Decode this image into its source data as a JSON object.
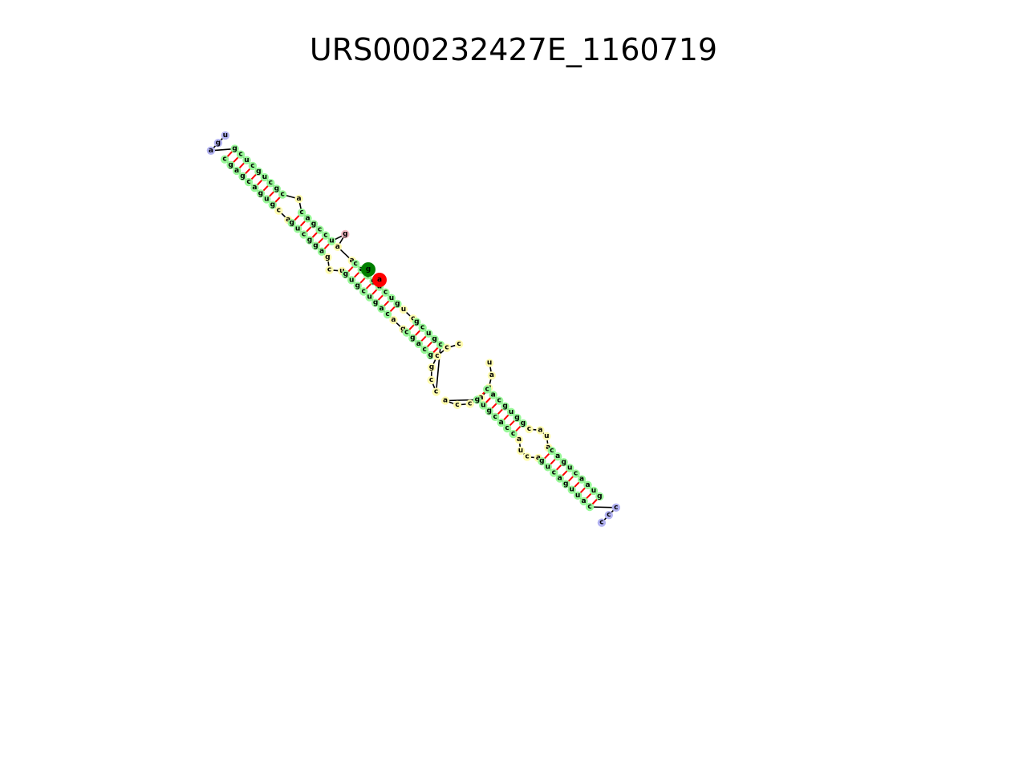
{
  "title": "URS000232427E_1160719",
  "colors": {
    "stem": "#98f898",
    "loop": "#fffcb0",
    "hairpin": "#b3b3f2",
    "unpaired_5prime": "#f2b8c2",
    "backbone": "#000000",
    "base_pair": "#ff0000",
    "start_marker": "#007f00",
    "end_marker": "#ff0000"
  },
  "diagram": {
    "type": "rna-secondary-structure",
    "segments": [
      {
        "id": "hairpin-top",
        "kind": "hairpin",
        "bases": [
          "u",
          "g",
          "a"
        ]
      },
      {
        "id": "stem-1",
        "kind": "stem",
        "strand_a": [
          "g",
          "c",
          "u",
          "c",
          "g",
          "u",
          "c",
          "g",
          "c"
        ],
        "strand_b": [
          "c",
          "g",
          "a",
          "g",
          "c",
          "a",
          "g",
          "u",
          "g"
        ]
      },
      {
        "id": "bulge-1",
        "kind": "loop",
        "bases": [
          "c",
          "a",
          "a"
        ]
      },
      {
        "id": "stem-2",
        "kind": "stem",
        "strand_a": [
          "c",
          "a",
          "g",
          "c",
          "c",
          "u"
        ],
        "strand_b": [
          "g",
          "u",
          "c",
          "g",
          "g",
          "a"
        ]
      },
      {
        "id": "loop-ends",
        "kind": "unpaired",
        "bases": [
          "g"
        ]
      },
      {
        "id": "loop-2",
        "kind": "loop",
        "bases": [
          "g",
          "c",
          "u",
          "a",
          "a"
        ]
      },
      {
        "id": "stem-3",
        "kind": "stem",
        "strand_a": [
          "c",
          "a",
          "c",
          "g",
          "a",
          "c",
          "u",
          "g"
        ],
        "strand_b": [
          "g",
          "u",
          "g",
          "c",
          "u",
          "g",
          "a",
          "c"
        ]
      },
      {
        "id": "bulge-2",
        "kind": "loop",
        "bases": [
          "a",
          "g",
          "u",
          "c"
        ]
      },
      {
        "id": "stem-4",
        "kind": "stem",
        "strand_a": [
          "g",
          "c",
          "u",
          "g",
          "c"
        ],
        "strand_b": [
          "c",
          "g",
          "a",
          "c",
          "g"
        ]
      },
      {
        "id": "interior-big",
        "kind": "loop",
        "bases": [
          "u",
          "a",
          "g",
          "a",
          "c",
          "c",
          "a",
          "c",
          "c",
          "g",
          "c",
          "c",
          "c"
        ]
      },
      {
        "id": "stem-5",
        "kind": "stem",
        "strand_a": [
          "c",
          "a",
          "c",
          "g",
          "u",
          "g",
          "g"
        ],
        "strand_b": [
          "g",
          "u",
          "g",
          "c",
          "a",
          "c",
          "c"
        ]
      },
      {
        "id": "interior-2",
        "kind": "loop",
        "bases": [
          "a",
          "u",
          "c",
          "a",
          "c",
          "a",
          "u",
          "a"
        ]
      },
      {
        "id": "stem-6",
        "kind": "stem",
        "strand_a": [
          "c",
          "a",
          "g",
          "u",
          "c",
          "a",
          "a",
          "u",
          "g"
        ],
        "strand_b": [
          "g",
          "u",
          "c",
          "a",
          "g",
          "u",
          "u",
          "a",
          "c"
        ]
      },
      {
        "id": "hairpin-bottom",
        "kind": "hairpin",
        "bases": [
          "c",
          "c",
          "c"
        ]
      }
    ],
    "start_label": "",
    "end_label": ""
  }
}
